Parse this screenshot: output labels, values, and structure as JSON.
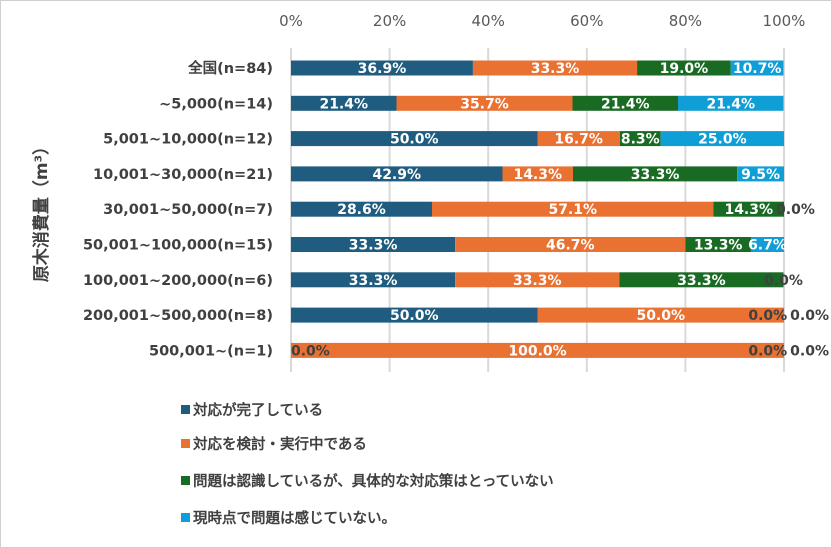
{
  "chart_data": {
    "type": "bar",
    "orientation": "horizontal",
    "stacked": true,
    "title": "",
    "ylabel": "原木消費量（m³）",
    "xlabel": "",
    "xlim": [
      0,
      100
    ],
    "x_ticks": [
      "0%",
      "20%",
      "40%",
      "60%",
      "80%",
      "100%"
    ],
    "grid": true,
    "legend_position": "bottom",
    "categories": [
      "全国(n=84)",
      "~5,000(n=14)",
      "5,001~10,000(n=12)",
      "10,001~30,000(n=21)",
      "30,001~50,000(n=7)",
      "50,001~100,000(n=15)",
      "100,001~200,000(n=6)",
      "200,001~500,000(n=8)",
      "500,001~(n=1)"
    ],
    "series": [
      {
        "name": "対応が完了している",
        "color": "#1F5C80",
        "values": [
          36.9,
          21.4,
          50.0,
          42.9,
          28.6,
          33.3,
          33.3,
          50.0,
          0.0
        ]
      },
      {
        "name": "対応を検討・実行中である",
        "color": "#E97132",
        "values": [
          33.3,
          35.7,
          16.7,
          14.3,
          57.1,
          46.7,
          33.3,
          50.0,
          100.0
        ]
      },
      {
        "name": "問題は認識しているが、具体的な対応策はとっていない",
        "color": "#196B24",
        "values": [
          19.0,
          21.4,
          8.3,
          33.3,
          14.3,
          13.3,
          33.3,
          0.0,
          0.0
        ]
      },
      {
        "name": "現時点で問題は感じていない。",
        "color": "#0F9ED5",
        "values": [
          10.7,
          21.4,
          25.0,
          9.5,
          0.0,
          6.7,
          0.0,
          0.0,
          0.0
        ]
      }
    ]
  }
}
